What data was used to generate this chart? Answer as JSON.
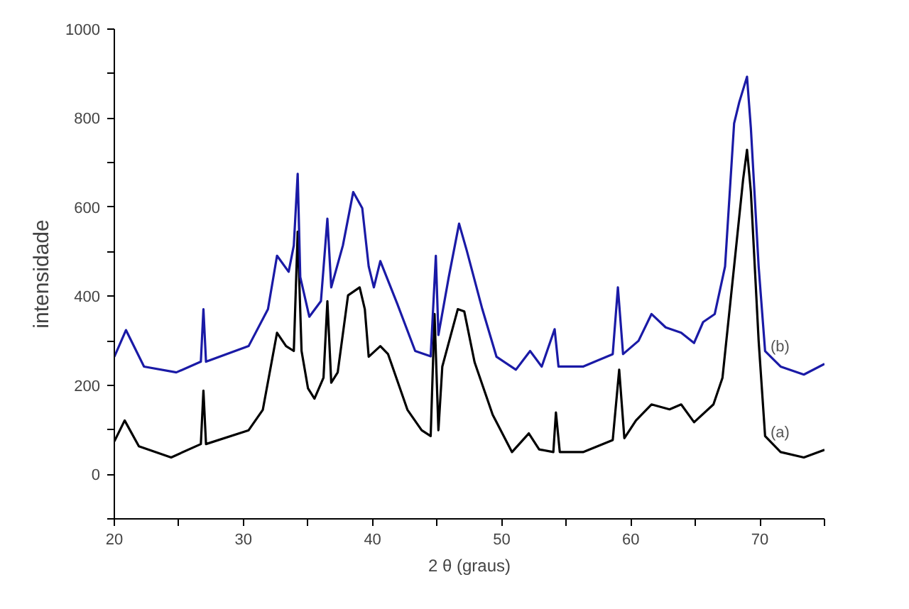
{
  "chart_data": {
    "type": "line",
    "xlabel": "2 θ (graus)",
    "ylabel": "intensidade",
    "xlim": [
      20,
      75
    ],
    "ylim": [
      -100,
      1000
    ],
    "xticks": [
      20,
      {
        "value": 25,
        "label": null
      },
      30,
      {
        "value": 35,
        "label": null
      },
      40,
      {
        "value": 45,
        "label": null
      },
      50,
      {
        "value": 55,
        "label": null
      },
      60,
      {
        "value": 65,
        "label": null
      },
      70,
      {
        "value": 75,
        "label": null
      }
    ],
    "yticks": [
      {
        "value": -100,
        "label": null
      },
      0,
      {
        "value": 100,
        "label": null
      },
      200,
      {
        "value": 300,
        "label": null
      },
      400,
      {
        "value": 500,
        "label": null
      },
      600,
      {
        "value": 700,
        "label": null
      },
      800,
      {
        "value": 900,
        "label": null
      },
      1000
    ],
    "grid": false,
    "marker": "none",
    "line_style": "solid",
    "series": [
      {
        "name": "(a)",
        "color": "#000000",
        "x": [
          20.0,
          20.8,
          21.9,
          24.4,
          26.7,
          26.9,
          27.1,
          30.4,
          31.5,
          32.6,
          33.3,
          33.9,
          34.2,
          34.5,
          35.0,
          35.5,
          36.2,
          36.5,
          36.8,
          37.3,
          38.1,
          39.0,
          39.4,
          39.7,
          40.6,
          41.2,
          42.7,
          43.8,
          44.5,
          44.8,
          45.1,
          45.4,
          46.6,
          47.1,
          47.9,
          49.3,
          50.8,
          52.1,
          52.9,
          54.0,
          54.2,
          54.5,
          56.3,
          58.6,
          59.1,
          59.5,
          60.4,
          61.6,
          63.0,
          63.9,
          64.9,
          66.4,
          67.1,
          68.0,
          68.7,
          69.0,
          69.3,
          69.9,
          70.4,
          71.6,
          73.4,
          75.0
        ],
        "values": [
          74,
          121,
          63,
          38,
          68,
          188,
          68,
          99,
          145,
          318,
          288,
          277,
          545,
          277,
          193,
          170,
          217,
          389,
          206,
          229,
          402,
          420,
          371,
          264,
          288,
          270,
          145,
          99,
          86,
          360,
          99,
          242,
          371,
          366,
          252,
          134,
          50,
          92,
          56,
          50,
          139,
          50,
          50,
          77,
          235,
          81,
          121,
          157,
          146,
          157,
          117,
          157,
          217,
          467,
          663,
          729,
          634,
          300,
          86,
          50,
          38,
          55
        ]
      },
      {
        "name": "(b)",
        "color": "#1a1aa6",
        "x": [
          20.0,
          20.9,
          22.3,
          24.8,
          26.7,
          26.9,
          27.1,
          30.4,
          31.9,
          32.6,
          33.5,
          33.9,
          34.2,
          34.4,
          35.1,
          36.0,
          36.5,
          36.8,
          37.7,
          38.5,
          39.2,
          39.7,
          40.1,
          40.6,
          41.9,
          43.3,
          44.5,
          44.9,
          45.1,
          45.9,
          46.7,
          47.3,
          48.5,
          49.6,
          51.1,
          52.2,
          53.1,
          54.1,
          54.4,
          56.3,
          58.6,
          59.0,
          59.4,
          60.6,
          61.6,
          62.7,
          63.9,
          64.9,
          65.6,
          66.5,
          67.3,
          68.0,
          68.4,
          69.0,
          69.3,
          69.9,
          70.4,
          71.6,
          73.4,
          75.0
        ],
        "values": [
          264,
          324,
          242,
          229,
          253,
          371,
          253,
          288,
          371,
          491,
          455,
          514,
          675,
          443,
          354,
          389,
          574,
          420,
          514,
          634,
          598,
          467,
          420,
          479,
          384,
          277,
          265,
          491,
          313,
          443,
          563,
          502,
          371,
          264,
          235,
          277,
          242,
          326,
          242,
          242,
          270,
          420,
          270,
          300,
          360,
          330,
          318,
          295,
          342,
          360,
          467,
          788,
          836,
          893,
          777,
          467,
          277,
          242,
          224,
          248
        ]
      }
    ]
  }
}
